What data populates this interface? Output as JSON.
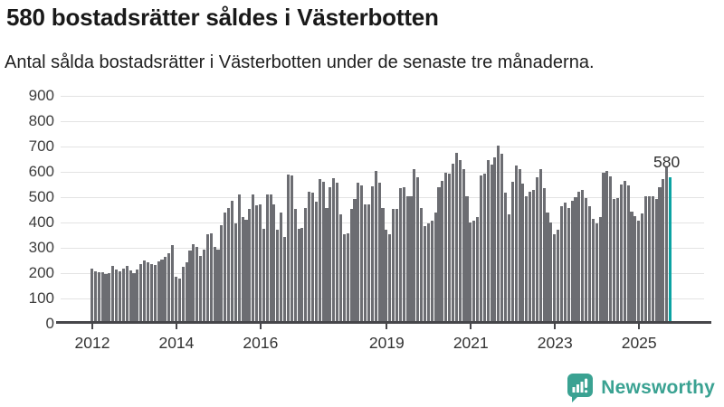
{
  "header": {
    "title": "580 bostadsrätter såldes i Västerbotten",
    "subtitle": "Antal sålda bostadsrätter i Västerbotten under de senaste tre månaderna."
  },
  "chart_data": {
    "type": "bar",
    "title": "580 bostadsrätter såldes i Västerbotten",
    "subtitle": "Antal sålda bostadsrätter i Västerbotten under de senaste tre månaderna.",
    "x_unit": "month",
    "start_month": "2012-01",
    "end_month": "2025-10",
    "values": [
      218,
      206,
      202,
      203,
      198,
      199,
      228,
      216,
      206,
      218,
      228,
      210,
      200,
      216,
      236,
      250,
      242,
      236,
      232,
      247,
      254,
      266,
      280,
      310,
      185,
      178,
      225,
      242,
      290,
      315,
      305,
      268,
      292,
      355,
      358,
      304,
      292,
      390,
      438,
      458,
      485,
      396,
      509,
      420,
      410,
      453,
      512,
      467,
      473,
      375,
      509,
      509,
      473,
      372,
      438,
      343,
      588,
      586,
      453,
      375,
      378,
      458,
      521,
      517,
      482,
      572,
      560,
      458,
      538,
      576,
      556,
      432,
      355,
      358,
      453,
      493,
      556,
      548,
      473,
      472,
      543,
      602,
      558,
      456,
      372,
      354,
      452,
      454,
      535,
      540,
      502,
      505,
      609,
      579,
      457,
      384,
      398,
      408,
      440,
      538,
      564,
      597,
      592,
      633,
      674,
      645,
      610,
      505,
      399,
      408,
      420,
      584,
      592,
      648,
      630,
      657,
      702,
      671,
      517,
      432,
      560,
      624,
      612,
      553,
      505,
      521,
      529,
      580,
      610,
      536,
      438,
      399,
      355,
      372,
      465,
      477,
      458,
      485,
      500,
      521,
      527,
      497,
      465,
      414,
      398,
      420,
      598,
      604,
      583,
      493,
      497,
      550,
      565,
      548,
      443,
      426,
      408,
      437,
      505,
      503,
      505,
      493,
      538,
      571,
      623,
      580
    ],
    "highlight": {
      "index": 165,
      "value": 580,
      "label": "580"
    },
    "ylim": [
      0,
      900
    ],
    "y_ticks": [
      0,
      100,
      200,
      300,
      400,
      500,
      600,
      700,
      800,
      900
    ],
    "x_tick_labels": [
      "2012",
      "2014",
      "2016",
      "2019",
      "2021",
      "2023",
      "2025"
    ],
    "x_tick_month_offsets": [
      0,
      24,
      48,
      84,
      108,
      132,
      156
    ],
    "grid": true,
    "legend": false,
    "colors": {
      "bar": "#6c6d72",
      "highlight": "#0ba3a3",
      "gridline": "#e3e3e3",
      "axis": "#46464a",
      "tick_text": "#333333"
    }
  },
  "footer": {
    "brand": "Newsworthy",
    "brand_color": "#3aa292",
    "logo_icon": "bar-chart-speech-bubble-icon"
  }
}
